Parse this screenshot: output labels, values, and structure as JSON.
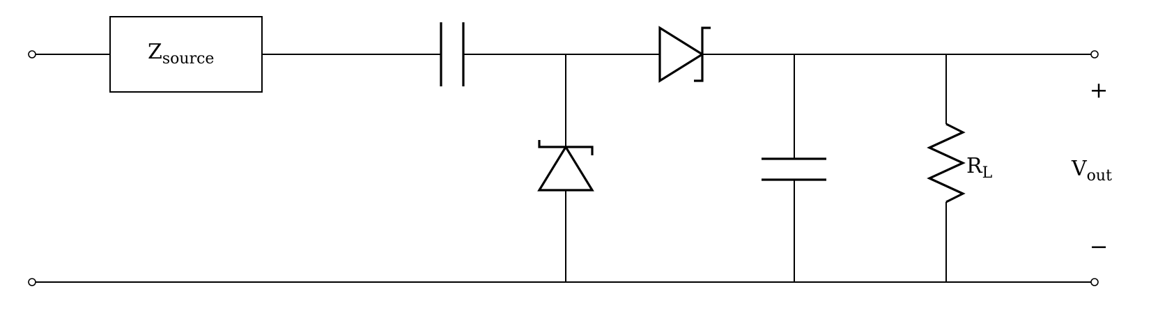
{
  "labels": {
    "z_source_main": "Z",
    "z_source_sub": "source",
    "r_load_main": "R",
    "r_load_sub": "L",
    "v_out_main": "V",
    "v_out_sub": "out",
    "plus": "+",
    "minus": "−"
  }
}
